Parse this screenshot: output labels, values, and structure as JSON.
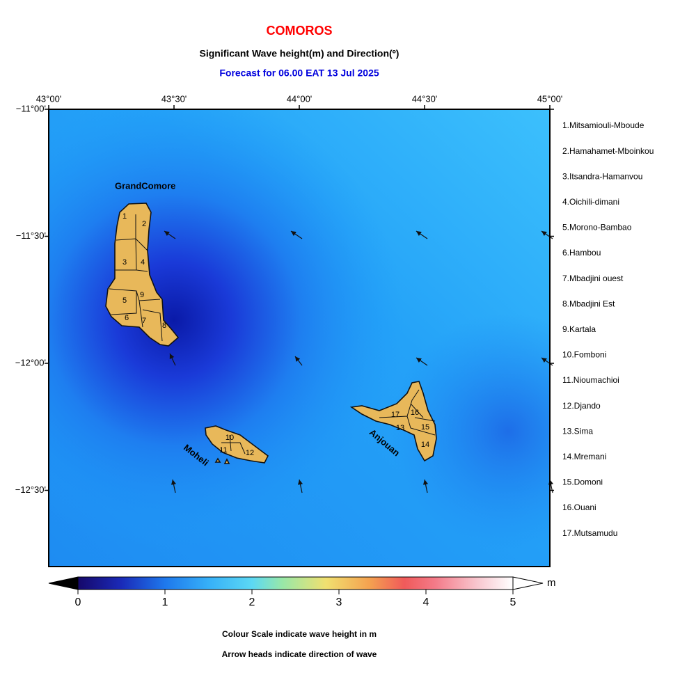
{
  "header": {
    "title": "COMOROS",
    "subtitle": "Significant Wave height(m) and Direction(º)",
    "forecast": "Forecast for  06.00 EAT 13 Jul 2025"
  },
  "map": {
    "xlim": [
      43.0,
      45.0
    ],
    "ylim": [
      -12.8,
      -11.0
    ],
    "xticks": [
      {
        "value": 43.0,
        "label": "43°00'"
      },
      {
        "value": 43.5,
        "label": "43°30'"
      },
      {
        "value": 44.0,
        "label": "44°00'"
      },
      {
        "value": 44.5,
        "label": "44°30'"
      },
      {
        "value": 45.0,
        "label": "45°00'"
      }
    ],
    "yticks": [
      {
        "value": -11.0,
        "label": "−11°00'"
      },
      {
        "value": -11.5,
        "label": "−11°30'"
      },
      {
        "value": -12.0,
        "label": "−12°00'"
      },
      {
        "value": -12.5,
        "label": "−12°30'"
      }
    ],
    "islands": [
      "GrandComore",
      "Moheli",
      "Anjouan"
    ],
    "district_labels": [
      "1",
      "2",
      "3",
      "4",
      "5",
      "6",
      "7",
      "8",
      "9",
      "10",
      "11",
      "12",
      "13",
      "14",
      "15",
      "16",
      "17"
    ]
  },
  "districts": [
    "1.Mitsamiouli-Mboude",
    "2.Hamahamet-Mboinkou",
    "3.Itsandra-Hamanvou",
    "4.Oichili-dimani",
    "5.Morono-Bambao",
    "6.Hambou",
    "7.Mbadjini ouest",
    "8.Mbadjini Est",
    "9.Kartala",
    "10.Fomboni",
    "11.Nioumachioi",
    "12.Djando",
    "13.Sima",
    "14.Mremani",
    "15.Domoni",
    "16.Ouani",
    "17.Mutsamudu"
  ],
  "colorbar": {
    "range": [
      0,
      5
    ],
    "ticks": [
      0,
      1,
      2,
      3,
      4,
      5
    ],
    "unit": "m"
  },
  "notes": [
    "Colour Scale indicate wave height in m",
    "Arrow heads indicate direction of wave"
  ]
}
